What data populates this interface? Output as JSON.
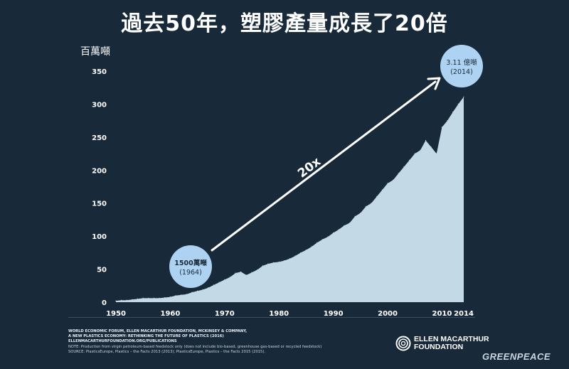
{
  "title": "過去50年，塑膠產量成長了20倍",
  "chart_data": {
    "type": "area",
    "ylabel": "百萬噸",
    "ylim": [
      0,
      350
    ],
    "yticks": [
      0,
      50,
      100,
      150,
      200,
      250,
      300,
      350
    ],
    "xlim": [
      1950,
      2014
    ],
    "xticks": [
      1950,
      1960,
      1970,
      1980,
      1990,
      2000,
      2010,
      2014
    ],
    "x": [
      1950,
      1951,
      1952,
      1953,
      1954,
      1955,
      1956,
      1957,
      1958,
      1959,
      1960,
      1961,
      1962,
      1963,
      1964,
      1965,
      1966,
      1967,
      1968,
      1969,
      1970,
      1971,
      1972,
      1973,
      1974,
      1975,
      1976,
      1977,
      1978,
      1979,
      1980,
      1981,
      1982,
      1983,
      1984,
      1985,
      1986,
      1987,
      1988,
      1989,
      1990,
      1991,
      1992,
      1993,
      1994,
      1995,
      1996,
      1997,
      1998,
      1999,
      2000,
      2001,
      2002,
      2003,
      2004,
      2005,
      2006,
      2007,
      2008,
      2009,
      2010,
      2011,
      2012,
      2013,
      2014
    ],
    "values": [
      2,
      3,
      3,
      4,
      5,
      6,
      6,
      6,
      6,
      7,
      8,
      10,
      11,
      12,
      15,
      17,
      19,
      22,
      26,
      30,
      34,
      38,
      44,
      46,
      41,
      45,
      49,
      55,
      58,
      60,
      61,
      63,
      66,
      70,
      75,
      79,
      84,
      90,
      95,
      99,
      105,
      110,
      116,
      120,
      130,
      135,
      145,
      150,
      160,
      170,
      180,
      185,
      195,
      205,
      215,
      225,
      230,
      245,
      235,
      225,
      265,
      275,
      288,
      300,
      311
    ],
    "annotations": {
      "start_label": "1500萬噸",
      "start_year": "(1964)",
      "end_label": "3.11 億噸",
      "end_year": "(2014)",
      "growth": "20x"
    },
    "colors": {
      "fill": "#c3d9e5",
      "bubble": "#aed3f2",
      "background": "#18293a"
    }
  },
  "footer": {
    "source_lines": [
      "WORLD ECONOMIC FORUM, ELLEN MACARTHUR FOUNDATION, MCKINSEY & COMPANY,",
      "A NEW PLASTICS ECONOMY: RETHINKING THE FUTURE OF PLASTICS (2016)",
      "ELLENMACARTHURFOUNDATION.ORG/PUBLICATIONS"
    ],
    "note": "NOTE: Production from virgin petroleum-based feedstock only (does not include bio-based, greenhouse gas-based or recycled feedstock)",
    "source": "SOURCE: PlasticsEurope, Plastics – the Facts 2013 (2013); PlasticsEurope, Plastics – the Facts 2015 (2015)."
  },
  "logos": {
    "emf_line1": "ELLEN MACARTHUR",
    "emf_line2": "FOUNDATION",
    "greenpeace": "GREENPEACE"
  }
}
